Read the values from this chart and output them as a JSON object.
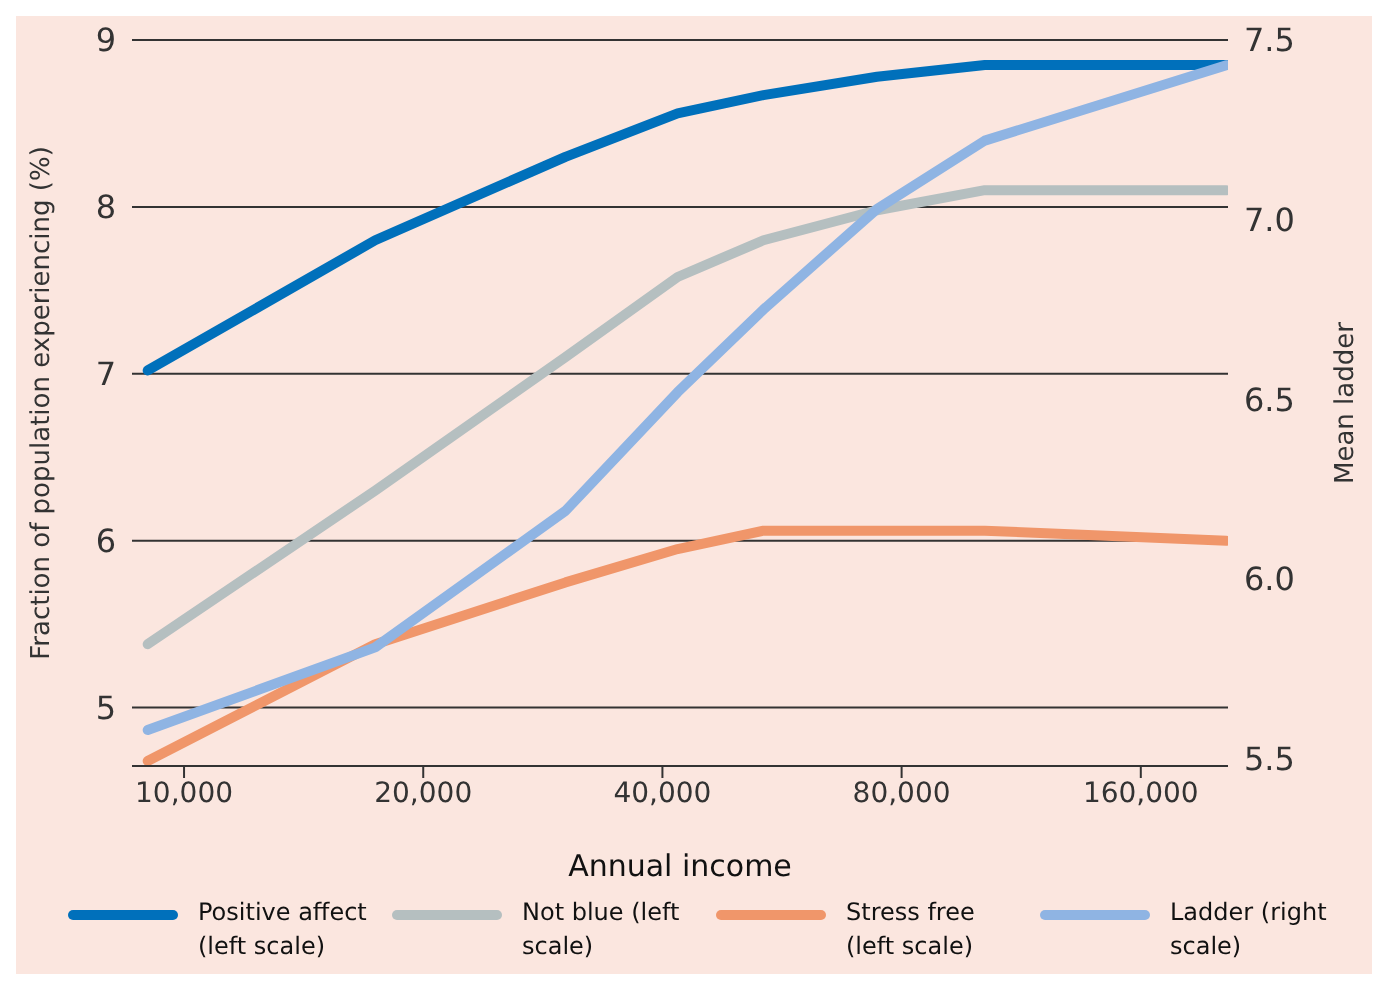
{
  "chart_data": {
    "type": "line",
    "xlabel": "Annual income",
    "ylabel": "Fraction of population experiencing (%)",
    "y2label": "Mean ladder",
    "log": "x",
    "grid": "y",
    "legend": "bottom",
    "marker": "none",
    "line_style": "solid",
    "xlim": [
      8600,
      206000
    ],
    "xticks": [
      {
        "value": 10000,
        "label": "10,000"
      },
      {
        "value": 20000,
        "label": "20,000"
      },
      {
        "value": 40000,
        "label": "40,000"
      },
      {
        "value": 80000,
        "label": "80,000"
      },
      {
        "value": 160000,
        "label": "160,000"
      }
    ],
    "ylim": [
      4.65,
      9
    ],
    "yticks": [
      5,
      6,
      7,
      8,
      9
    ],
    "y2lim": [
      5.48,
      7.5
    ],
    "y2ticks": [
      {
        "value": 5.5,
        "label": "5.5"
      },
      {
        "value": 6,
        "label": "6.0"
      },
      {
        "value": 6.5,
        "label": "6.5"
      },
      {
        "value": 7,
        "label": "7.0"
      },
      {
        "value": 7.5,
        "label": "7.5"
      }
    ],
    "x": [
      9000,
      17400,
      30200,
      41800,
      53600,
      74500,
      101800,
      205000
    ],
    "series": [
      {
        "name": "Positive affect (left scale)",
        "color": "#0070bb",
        "values": [
          7.02,
          7.8,
          8.3,
          8.56,
          8.67,
          8.78,
          8.85,
          8.85
        ]
      },
      {
        "name": "Not blue (left scale)",
        "color": "#b5bfc0",
        "values": [
          5.38,
          6.3,
          7.1,
          7.58,
          7.8,
          7.98,
          8.1,
          8.1
        ]
      },
      {
        "name": "Stress free (left scale)",
        "color": "#f0966a",
        "values": [
          4.68,
          5.38,
          5.75,
          5.95,
          6.06,
          6.06,
          6.06,
          6.0
        ]
      },
      {
        "name": "Ladder (right scale)",
        "color": "#8fb4e3",
        "axis": "y2",
        "values": [
          5.58,
          5.81,
          6.19,
          6.52,
          6.75,
          7.03,
          7.22,
          7.43
        ]
      }
    ]
  }
}
